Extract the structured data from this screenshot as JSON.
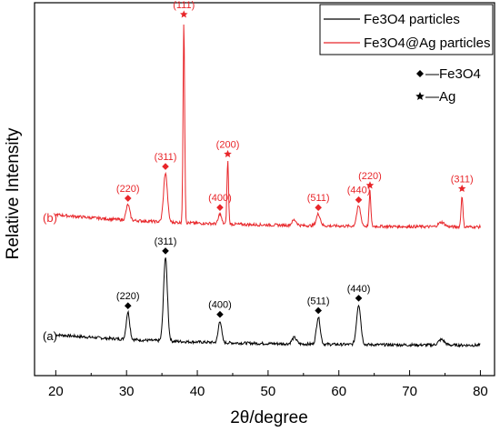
{
  "chart_data": {
    "type": "line",
    "xlabel": "2θ/degree",
    "ylabel": "Relative Intensity",
    "xlim": [
      17,
      82
    ],
    "x_ticks": [
      "20",
      "30",
      "40",
      "50",
      "60",
      "70",
      "80"
    ],
    "grid": false,
    "legend": {
      "placement": "top-right",
      "entries": [
        {
          "label": "Fe3O4 particles",
          "color": "#000000"
        },
        {
          "label": "Fe3O4@Ag particles",
          "color": "#e8262a"
        }
      ]
    },
    "symbol_key": [
      {
        "symbol": "diamond",
        "label": "—Fe3O4"
      },
      {
        "symbol": "star",
        "label": "—Ag"
      }
    ],
    "series": [
      {
        "name": "Fe3O4 particles",
        "tag": "(a)",
        "color": "#000000",
        "peaks": [
          {
            "x": 30.2,
            "label": "(220)",
            "marker": "diamond"
          },
          {
            "x": 35.5,
            "label": "(311)",
            "marker": "diamond"
          },
          {
            "x": 43.2,
            "label": "(400)",
            "marker": "diamond"
          },
          {
            "x": 57.1,
            "label": "(511)",
            "marker": "diamond"
          },
          {
            "x": 62.8,
            "label": "(440)",
            "marker": "diamond"
          }
        ]
      },
      {
        "name": "Fe3O4@Ag particles",
        "tag": "(b)",
        "color": "#e8262a",
        "peaks": [
          {
            "x": 30.2,
            "label": "(220)",
            "marker": "diamond"
          },
          {
            "x": 35.5,
            "label": "(311)",
            "marker": "diamond"
          },
          {
            "x": 38.1,
            "label": "(111)",
            "marker": "star"
          },
          {
            "x": 43.2,
            "label": "(400)",
            "marker": "diamond"
          },
          {
            "x": 44.3,
            "label": "(200)",
            "marker": "star"
          },
          {
            "x": 57.1,
            "label": "(511)",
            "marker": "diamond"
          },
          {
            "x": 62.8,
            "label": "(440)",
            "marker": "diamond"
          },
          {
            "x": 64.4,
            "label": "(220)",
            "marker": "star"
          },
          {
            "x": 77.4,
            "label": "(311)",
            "marker": "star"
          }
        ]
      }
    ]
  }
}
